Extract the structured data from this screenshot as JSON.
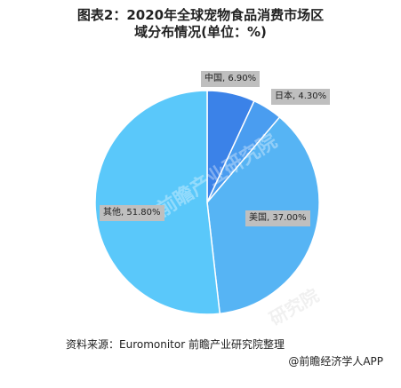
{
  "chart_data": {
    "type": "pie",
    "title_line1": "图表2：2020年全球宠物食品消费市场区",
    "title_line2": "域分布情况(单位：%)",
    "slices": [
      {
        "label": "中国",
        "value": 6.9,
        "display": "中国, 6.90%",
        "color": "#3b82e8"
      },
      {
        "label": "日本",
        "value": 4.3,
        "display": "日本, 4.30%",
        "color": "#4a9df0"
      },
      {
        "label": "美国",
        "value": 37.0,
        "display": "美国, 37.00%",
        "color": "#56b4f4"
      },
      {
        "label": "其他",
        "value": 51.8,
        "display": "其他, 51.80%",
        "color": "#5ac8fa"
      }
    ]
  },
  "source": "资料来源：Euromonitor 前瞻产业研究院整理",
  "brand": "@前瞻经济学人APP",
  "watermark_text": "前瞻产业研究院",
  "watermark_text2": "研究院"
}
